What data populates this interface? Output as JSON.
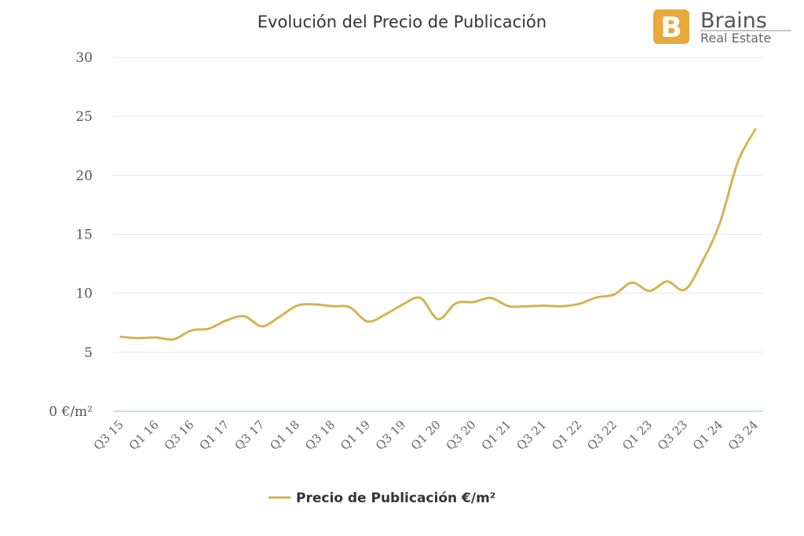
{
  "chart_data": {
    "type": "line",
    "title": "Evolución del Precio de Publicación",
    "xlabel": "",
    "ylabel": "",
    "ylim": [
      0,
      30
    ],
    "yticks": [
      "0 €/m²",
      "5",
      "10",
      "15",
      "20",
      "25",
      "30"
    ],
    "ytick_values": [
      0,
      5,
      10,
      15,
      20,
      25,
      30
    ],
    "x": [
      "Q3 15",
      "Q4 15",
      "Q1 16",
      "Q2 16",
      "Q3 16",
      "Q4 16",
      "Q1 17",
      "Q2 17",
      "Q3 17",
      "Q4 17",
      "Q1 18",
      "Q2 18",
      "Q3 18",
      "Q4 18",
      "Q1 19",
      "Q2 19",
      "Q3 19",
      "Q4 19",
      "Q1 20",
      "Q2 20",
      "Q3 20",
      "Q4 20",
      "Q1 21",
      "Q2 21",
      "Q3 21",
      "Q4 21",
      "Q1 22",
      "Q2 22",
      "Q3 22",
      "Q4 22",
      "Q1 23",
      "Q2 23",
      "Q3 23",
      "Q4 23",
      "Q1 24",
      "Q2 24",
      "Q3 24"
    ],
    "xticks_shown": [
      "Q3 15",
      "Q1 16",
      "Q3 16",
      "Q1 17",
      "Q3 17",
      "Q1 18",
      "Q3 18",
      "Q1 19",
      "Q3 19",
      "Q1 20",
      "Q3 20",
      "Q1 21",
      "Q3 21",
      "Q1 22",
      "Q3 22",
      "Q1 23",
      "Q3 23",
      "Q1 24",
      "Q3 24"
    ],
    "series": [
      {
        "name": "Precio de Publicación €/m²",
        "color": "#d4b354",
        "values": [
          6.3,
          6.2,
          6.25,
          6.1,
          6.85,
          7.0,
          7.7,
          8.05,
          7.2,
          8.0,
          8.95,
          9.05,
          8.9,
          8.8,
          7.6,
          8.2,
          9.05,
          9.6,
          7.8,
          9.15,
          9.25,
          9.6,
          8.9,
          8.9,
          8.95,
          8.9,
          9.1,
          9.65,
          9.9,
          10.9,
          10.2,
          11.0,
          10.3,
          12.7,
          16.0,
          21.1,
          23.9
        ]
      }
    ],
    "grid": true,
    "legend": "bottom-center"
  },
  "logo": {
    "mark": "B",
    "brand": "Brains",
    "sub": "Real Estate",
    "color": "#e8aa3c"
  }
}
